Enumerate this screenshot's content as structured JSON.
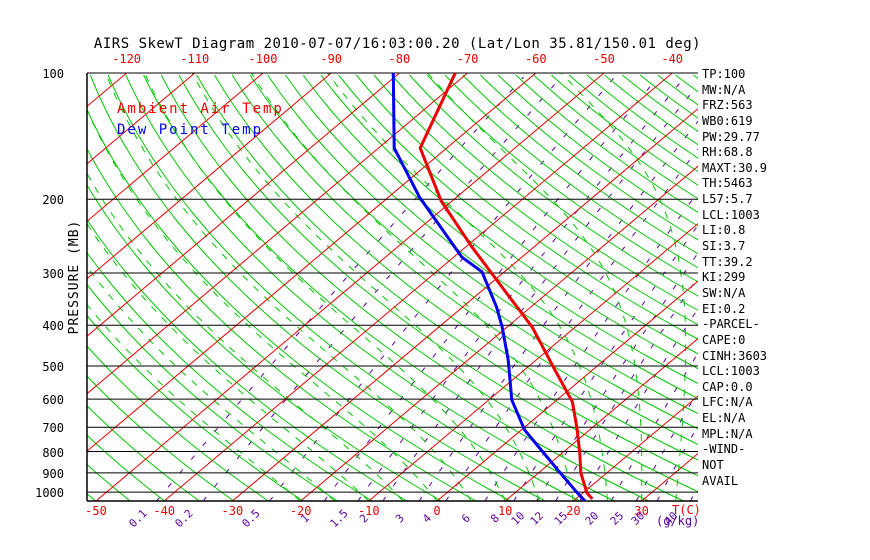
{
  "title": "AIRS SkewT Diagram 2010-07-07/16:03:00.20 (Lat/Lon 35.81/150.01 deg)",
  "legend": {
    "ambient_label": "Ambient Air Temp",
    "dewpoint_label": "Dew Point Temp"
  },
  "y_axis": {
    "label": "PRESSURE (MB)",
    "ticks": [
      100,
      200,
      300,
      400,
      500,
      600,
      700,
      800,
      900,
      1000
    ],
    "range": [
      100,
      1050
    ],
    "scale": "log"
  },
  "x_axis": {
    "unit": "T(C)",
    "top_ticks": [
      -120,
      -110,
      -100,
      -90,
      -80,
      -70,
      -60,
      -50,
      -40
    ],
    "bottom_ticks": [
      -50,
      -40,
      -30,
      -20,
      -10,
      0,
      10,
      20,
      30
    ]
  },
  "mixing": {
    "unit": "(g/kg)",
    "values": [
      0.1,
      0.2,
      0.5,
      1,
      1.5,
      2,
      3,
      4,
      6,
      8,
      10,
      12,
      15,
      20,
      25,
      30,
      40
    ]
  },
  "stats": [
    "TP:100",
    "MW:N/A",
    "FRZ:563",
    "WB0:619",
    "PW:29.77",
    "RH:68.8",
    "MAXT:30.9",
    "TH:5463",
    "L57:5.7",
    "LCL:1003",
    "LI:0.8",
    "SI:3.7",
    "TT:39.2",
    "KI:299",
    "SW:N/A",
    "EI:0.2",
    "-PARCEL-",
    "CAPE:0",
    "CINH:3603",
    "LCL:1003",
    "CAP:0.0",
    "LFC:N/A",
    "EL:N/A",
    "MPL:N/A",
    "-WIND-",
    "NOT",
    "AVAIL"
  ],
  "colors": {
    "temperature_curve": "#ee0000",
    "dewpoint_curve": "#0000ee",
    "isotherm": "#ee0000",
    "dry_adiabat": "#00c800",
    "moist_adiabat": "#00c800",
    "mixing_ratio": "#5a009e",
    "axis": "#000000",
    "background": "#ffffff"
  },
  "chart_data": {
    "type": "line",
    "title": "AIRS SkewT Diagram 2010-07-07/16:03:00.20 (Lat/Lon 35.81/150.01 deg)",
    "xlabel": "T(C)",
    "ylabel": "PRESSURE (MB)",
    "x_range_c_at_surface": [
      -51,
      38
    ],
    "p_range_hpa": [
      100,
      1050
    ],
    "grid": {
      "isotherms_c": {
        "min": -120,
        "max": 40,
        "step": 10
      },
      "dry_adiabats_theta_K": {
        "min": 220,
        "max": 460,
        "step": 5
      },
      "moist_adiabats_thetaw_C": {
        "min": -20,
        "max": 40,
        "step": 5
      },
      "mixing_ratio_g_per_kg": [
        0.1,
        0.2,
        0.5,
        1,
        1.5,
        2,
        3,
        4,
        6,
        8,
        10,
        12,
        15,
        20,
        25,
        30,
        40
      ]
    },
    "legend_position": "top-left-inside",
    "series": [
      {
        "name": "Ambient Air Temp",
        "color": "#ee0000",
        "points_p_hpa_t_c": [
          [
            100,
            -71.8
          ],
          [
            151,
            -63.9
          ],
          [
            202,
            -51.6
          ],
          [
            260,
            -39.1
          ],
          [
            326,
            -27.4
          ],
          [
            404,
            -16.3
          ],
          [
            508,
            -5.8
          ],
          [
            609,
            2.6
          ],
          [
            703,
            7.8
          ],
          [
            807,
            12.6
          ],
          [
            900,
            16.2
          ],
          [
            1005,
            20.6
          ],
          [
            1038,
            22.4
          ]
        ]
      },
      {
        "name": "Dew Point Temp",
        "color": "#0000ee",
        "points_p_hpa_t_c": [
          [
            100,
            -80.9
          ],
          [
            151,
            -67.7
          ],
          [
            198,
            -55.4
          ],
          [
            237,
            -46.3
          ],
          [
            275,
            -38.8
          ],
          [
            298,
            -33.3
          ],
          [
            362,
            -25.0
          ],
          [
            404,
            -20.7
          ],
          [
            484,
            -14.1
          ],
          [
            603,
            -6.6
          ],
          [
            711,
            0.5
          ],
          [
            802,
            7.0
          ],
          [
            900,
            13.2
          ],
          [
            994,
            18.6
          ],
          [
            1050,
            21.7
          ]
        ]
      }
    ]
  }
}
